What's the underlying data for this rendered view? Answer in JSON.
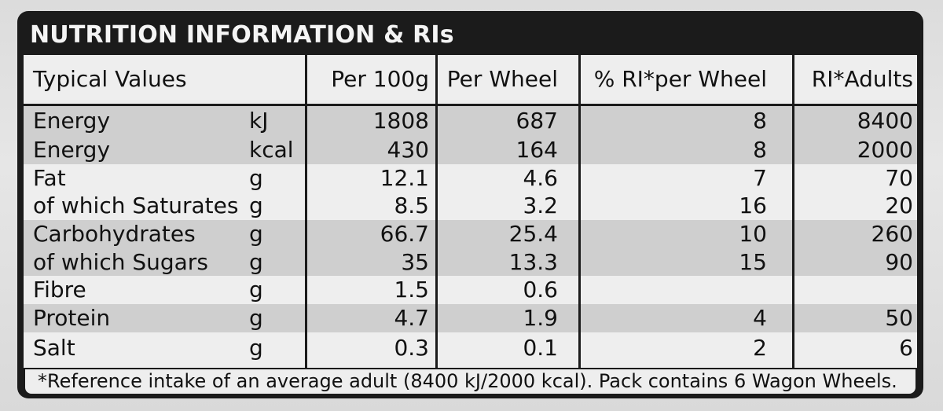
{
  "title": "NUTRITION INFORMATION & RIs",
  "header": {
    "typical_values": "Typical Values",
    "per_100g": "Per 100g",
    "per_wheel": "Per Wheel",
    "pct_ri": "% RI*per Wheel",
    "ri_adults": "RI*Adults"
  },
  "rows": [
    {
      "name": "Energy",
      "unit": "kJ",
      "per100": "1808",
      "wheel": "687",
      "pct": "8",
      "ri": "8400"
    },
    {
      "name": "Energy",
      "unit": "kcal",
      "per100": "430",
      "wheel": "164",
      "pct": "8",
      "ri": "2000"
    },
    {
      "name": "Fat",
      "unit": "g",
      "per100": "12.1",
      "wheel": "4.6",
      "pct": "7",
      "ri": "70"
    },
    {
      "name": "of which Saturates",
      "unit": "g",
      "per100": "8.5",
      "wheel": "3.2",
      "pct": "16",
      "ri": "20"
    },
    {
      "name": "Carbohydrates",
      "unit": "g",
      "per100": "66.7",
      "wheel": "25.4",
      "pct": "10",
      "ri": "260"
    },
    {
      "name": "of which Sugars",
      "unit": "g",
      "per100": "35",
      "wheel": "13.3",
      "pct": "15",
      "ri": "90"
    },
    {
      "name": "Fibre",
      "unit": "g",
      "per100": "1.5",
      "wheel": "0.6",
      "pct": "",
      "ri": ""
    },
    {
      "name": "Protein",
      "unit": "g",
      "per100": "4.7",
      "wheel": "1.9",
      "pct": "4",
      "ri": "50"
    },
    {
      "name": "Salt",
      "unit": "g",
      "per100": "0.3",
      "wheel": "0.1",
      "pct": "2",
      "ri": "6"
    }
  ],
  "footnote": "*Reference intake of an average adult (8400 kJ/2000 kcal). Pack contains 6 Wagon Wheels."
}
